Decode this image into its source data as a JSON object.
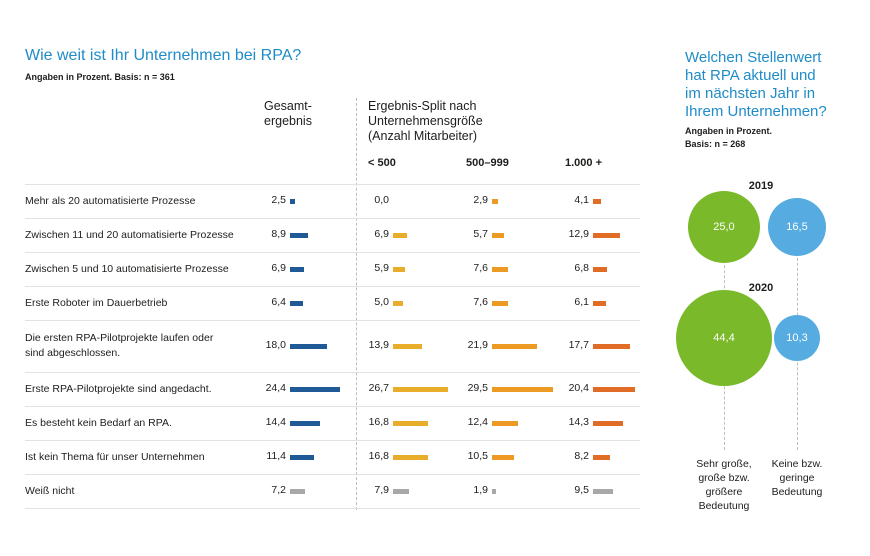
{
  "left_chart": {
    "title": "Wie weit ist Ihr Unternehmen bei RPA?",
    "subtitle": "Angaben in Prozent. Basis: n = 361",
    "header_total_line1": "Gesamt-",
    "header_total_line2": "ergebnis",
    "header_split_line1": "Ergebnis-Split nach",
    "header_split_line2": "Unternehmensgröße",
    "header_split_line3": "(Anzahl Mitarbeiter)",
    "col_lt500": "< 500",
    "col_500_999": "500–999",
    "col_1000": "1.000 +"
  },
  "right_chart": {
    "title_line1": "Welchen Stellenwert",
    "title_line2": "hat RPA aktuell und",
    "title_line3": "im nächsten Jahr in",
    "title_line4": "Ihrem Unternehmen?",
    "sub_line1": "Angaben in Prozent.",
    "sub_line2": "Basis: n = 268",
    "year_2019": "2019",
    "year_2020": "2020",
    "legend_high_1": "Sehr große,",
    "legend_high_2": "große bzw.",
    "legend_high_3": "größere",
    "legend_high_4": "Bedeutung",
    "legend_low_1": "Keine bzw.",
    "legend_low_2": "geringe",
    "legend_low_3": "Bedeutung"
  },
  "colors": {
    "title": "#1f8cc8",
    "total": "#1f5a96",
    "lt500": "#e8ad2a",
    "mid": "#ed9a25",
    "big": "#e06c25",
    "na": "#a8a8a8",
    "green": "#7ab929",
    "blue": "#56ace0"
  },
  "chart_data": [
    {
      "type": "bar",
      "categories": [
        [
          "Mehr als 20 automatisierte Prozesse"
        ],
        [
          "Zwischen 11 und 20 automatisierte Prozesse"
        ],
        [
          "Zwischen 5 und 10 automatisierte Prozesse"
        ],
        [
          "Erste Roboter im Dauerbetrieb"
        ],
        [
          "Die ersten RPA-Pilotprojekte laufen oder",
          "sind abgeschlossen."
        ],
        [
          "Erste RPA-Pilotprojekte sind angedacht."
        ],
        [
          "Es besteht kein Bedarf an RPA."
        ],
        [
          "Ist kein Thema für unser Unternehmen"
        ],
        [
          "Weiß nicht"
        ]
      ],
      "series": [
        {
          "name": "Gesamtergebnis",
          "values": [
            "2,5",
            "8,9",
            "6,9",
            "6,4",
            "18,0",
            "24,4",
            "14,4",
            "11,4",
            "7,2"
          ]
        },
        {
          "name": "< 500",
          "values": [
            "0,0",
            "6,9",
            "5,9",
            "5,0",
            "13,9",
            "26,7",
            "16,8",
            "16,8",
            "7,9"
          ]
        },
        {
          "name": "500–999",
          "values": [
            "2,9",
            "5,7",
            "7,6",
            "7,6",
            "21,9",
            "29,5",
            "12,4",
            "10,5",
            "1,9"
          ]
        },
        {
          "name": "1.000 +",
          "values": [
            "4,1",
            "12,9",
            "6,8",
            "6,1",
            "17,7",
            "20,4",
            "14,3",
            "8,2",
            "9,5"
          ]
        }
      ]
    },
    {
      "type": "bubble",
      "categories": [
        "2019",
        "2020"
      ],
      "series": [
        {
          "name": "Sehr große, große bzw. größere Bedeutung",
          "values": [
            "25,0",
            "44,4"
          ]
        },
        {
          "name": "Keine bzw. geringe Bedeutung",
          "values": [
            "16,5",
            "10,3"
          ]
        }
      ]
    }
  ]
}
